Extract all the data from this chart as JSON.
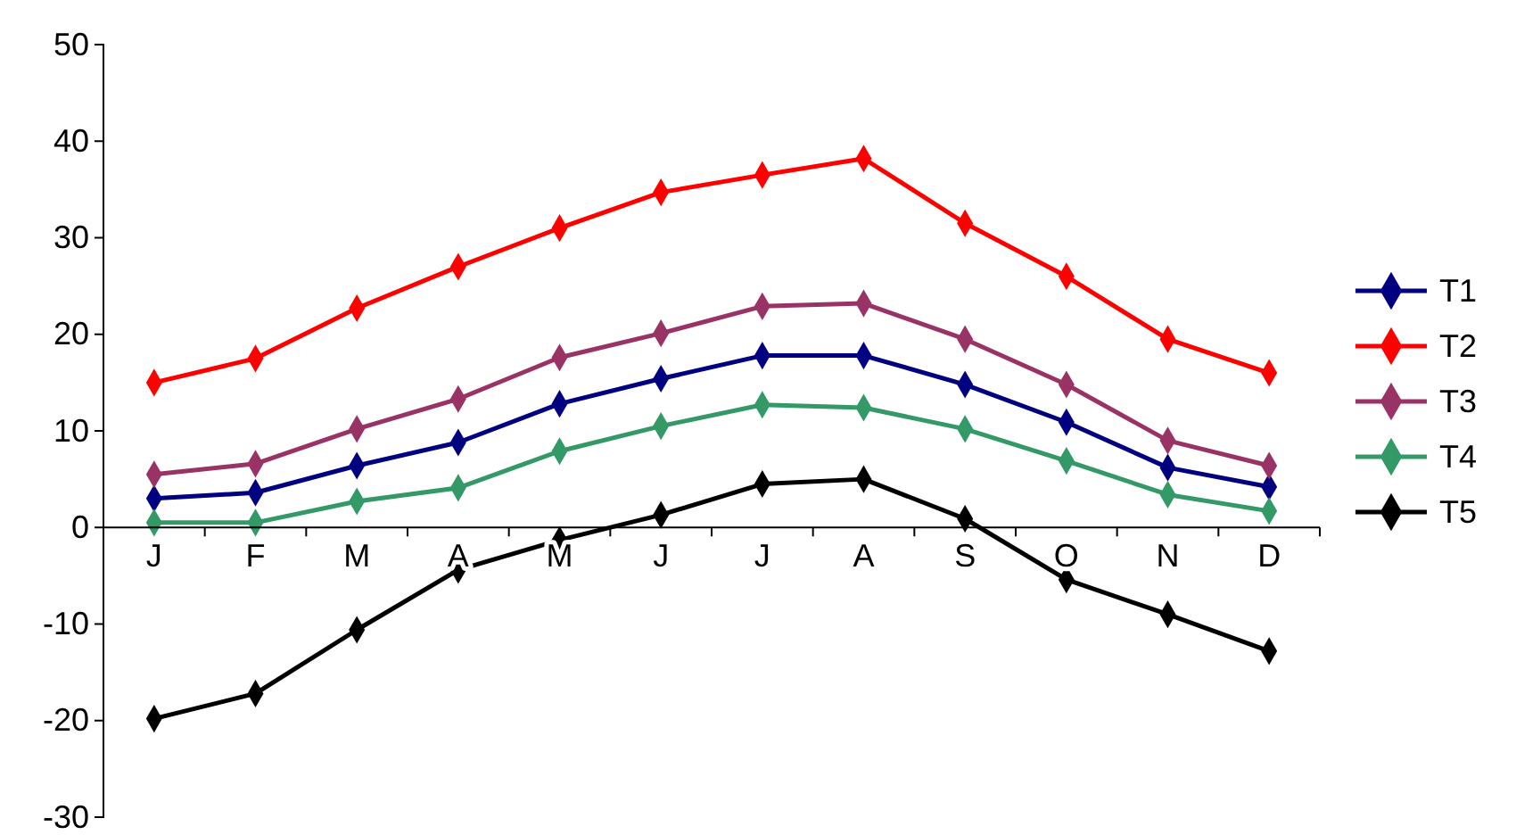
{
  "chart_data": {
    "type": "line",
    "categories": [
      "J",
      "F",
      "M",
      "A",
      "M",
      "J",
      "J",
      "A",
      "S",
      "O",
      "N",
      "D"
    ],
    "series": [
      {
        "name": "T1",
        "color": "#000080",
        "values": [
          3,
          3.6,
          6.4,
          8.8,
          12.8,
          15.4,
          17.8,
          17.8,
          14.8,
          10.9,
          6.2,
          4.2
        ]
      },
      {
        "name": "T2",
        "color": "#ff0000",
        "values": [
          15,
          17.5,
          22.7,
          27,
          31,
          34.7,
          36.5,
          38.2,
          31.5,
          26,
          19.5,
          16
        ]
      },
      {
        "name": "T3",
        "color": "#993366",
        "values": [
          5.5,
          6.6,
          10.2,
          13.3,
          17.6,
          20.1,
          22.9,
          23.2,
          19.5,
          14.8,
          9,
          6.4
        ]
      },
      {
        "name": "T4",
        "color": "#339966",
        "values": [
          0.5,
          0.5,
          2.7,
          4.1,
          7.9,
          10.5,
          12.7,
          12.4,
          10.2,
          6.9,
          3.4,
          1.7
        ]
      },
      {
        "name": "T5",
        "color": "#000000",
        "values": [
          -19.8,
          -17.2,
          -10.6,
          -4.4,
          -1.3,
          1.3,
          4.5,
          5,
          0.9,
          -5.4,
          -9,
          -12.8
        ]
      }
    ],
    "ylim": [
      -30,
      50
    ],
    "yticks": [
      -30,
      -20,
      -10,
      0,
      10,
      20,
      30,
      40,
      50
    ],
    "grid": false,
    "legend": "right",
    "marker": "diamond",
    "line_style": "solid"
  }
}
